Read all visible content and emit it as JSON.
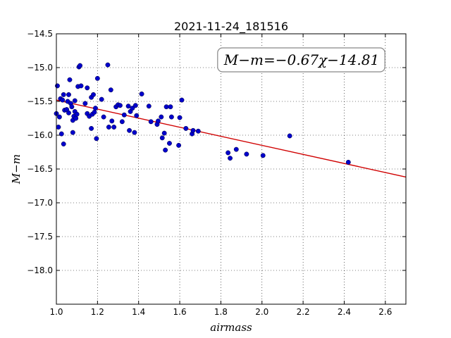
{
  "chart_data": {
    "type": "scatter",
    "title": "2021-11-24_181516",
    "xlabel": "airmass",
    "ylabel": "M−m",
    "xlim": [
      1.0,
      2.7
    ],
    "ylim": [
      -14.5,
      -18.5
    ],
    "y_inverted": true,
    "xticks": [
      "1.0",
      "1.2",
      "1.4",
      "1.6",
      "1.8",
      "2.0",
      "2.2",
      "2.4",
      "2.6"
    ],
    "yticks": [
      "−14.5",
      "−15.0",
      "−15.5",
      "−16.0",
      "−16.5",
      "−17.0",
      "−17.5",
      "−18.0"
    ],
    "grid": true,
    "annotation": "M−m=−0.67χ−14.81",
    "fit": {
      "slope": -0.67,
      "intercept": -14.81,
      "color": "#d00000"
    },
    "point_color": "#0000cc",
    "points": [
      [
        1.0,
        -15.68
      ],
      [
        1.005,
        -15.27
      ],
      [
        1.01,
        -15.88
      ],
      [
        1.015,
        -15.73
      ],
      [
        1.02,
        -15.46
      ],
      [
        1.025,
        -15.98
      ],
      [
        1.03,
        -15.48
      ],
      [
        1.035,
        -16.13
      ],
      [
        1.035,
        -15.4
      ],
      [
        1.04,
        -15.63
      ],
      [
        1.05,
        -15.62
      ],
      [
        1.055,
        -15.5
      ],
      [
        1.06,
        -15.67
      ],
      [
        1.06,
        -15.4
      ],
      [
        1.065,
        -15.18
      ],
      [
        1.07,
        -15.53
      ],
      [
        1.075,
        -15.58
      ],
      [
        1.08,
        -15.78
      ],
      [
        1.08,
        -15.96
      ],
      [
        1.085,
        -15.72
      ],
      [
        1.09,
        -15.65
      ],
      [
        1.09,
        -15.49
      ],
      [
        1.095,
        -15.75
      ],
      [
        1.1,
        -15.69
      ],
      [
        1.105,
        -15.28
      ],
      [
        1.11,
        -14.99
      ],
      [
        1.115,
        -14.97
      ],
      [
        1.12,
        -15.27
      ],
      [
        1.14,
        -15.53
      ],
      [
        1.15,
        -15.68
      ],
      [
        1.15,
        -15.3
      ],
      [
        1.16,
        -15.72
      ],
      [
        1.17,
        -15.9
      ],
      [
        1.17,
        -15.44
      ],
      [
        1.175,
        -15.69
      ],
      [
        1.18,
        -15.4
      ],
      [
        1.185,
        -15.66
      ],
      [
        1.19,
        -15.6
      ],
      [
        1.195,
        -16.05
      ],
      [
        1.2,
        -15.16
      ],
      [
        1.22,
        -15.47
      ],
      [
        1.23,
        -15.73
      ],
      [
        1.25,
        -14.96
      ],
      [
        1.255,
        -15.88
      ],
      [
        1.265,
        -15.33
      ],
      [
        1.27,
        -15.79
      ],
      [
        1.28,
        -15.88
      ],
      [
        1.29,
        -15.58
      ],
      [
        1.3,
        -15.55
      ],
      [
        1.31,
        -15.56
      ],
      [
        1.32,
        -15.8
      ],
      [
        1.33,
        -15.7
      ],
      [
        1.35,
        -15.57
      ],
      [
        1.355,
        -15.93
      ],
      [
        1.36,
        -15.65
      ],
      [
        1.37,
        -15.6
      ],
      [
        1.38,
        -15.96
      ],
      [
        1.385,
        -15.56
      ],
      [
        1.39,
        -15.71
      ],
      [
        1.415,
        -15.39
      ],
      [
        1.45,
        -15.57
      ],
      [
        1.46,
        -15.8
      ],
      [
        1.49,
        -15.84
      ],
      [
        1.495,
        -15.79
      ],
      [
        1.51,
        -15.73
      ],
      [
        1.515,
        -16.04
      ],
      [
        1.525,
        -15.97
      ],
      [
        1.53,
        -16.22
      ],
      [
        1.535,
        -15.58
      ],
      [
        1.55,
        -16.12
      ],
      [
        1.555,
        -15.58
      ],
      [
        1.56,
        -15.73
      ],
      [
        1.595,
        -16.15
      ],
      [
        1.6,
        -15.74
      ],
      [
        1.61,
        -15.48
      ],
      [
        1.63,
        -15.9
      ],
      [
        1.66,
        -15.98
      ],
      [
        1.665,
        -15.93
      ],
      [
        1.69,
        -15.94
      ],
      [
        1.835,
        -16.26
      ],
      [
        1.845,
        -16.34
      ],
      [
        1.875,
        -16.21
      ],
      [
        1.925,
        -16.28
      ],
      [
        2.005,
        -16.3
      ],
      [
        2.135,
        -16.01
      ],
      [
        2.42,
        -16.4
      ]
    ]
  }
}
